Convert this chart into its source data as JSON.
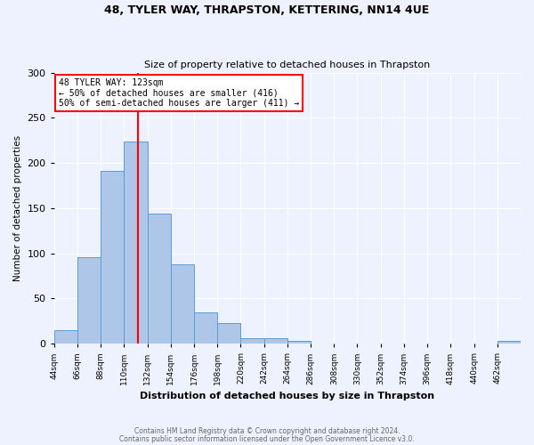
{
  "title1": "48, TYLER WAY, THRAPSTON, KETTERING, NN14 4UE",
  "title2": "Size of property relative to detached houses in Thrapston",
  "xlabel": "Distribution of detached houses by size in Thrapston",
  "ylabel": "Number of detached properties",
  "footer1": "Contains HM Land Registry data © Crown copyright and database right 2024.",
  "footer2": "Contains public sector information licensed under the Open Government Licence v3.0.",
  "bins": [
    44,
    66,
    88,
    110,
    132,
    154,
    176,
    198,
    220,
    242,
    264,
    286,
    308,
    330,
    352,
    374,
    396,
    418,
    440,
    462,
    484
  ],
  "bar_values": [
    15,
    96,
    191,
    224,
    144,
    88,
    35,
    23,
    6,
    6,
    3,
    0,
    0,
    0,
    0,
    0,
    0,
    0,
    0,
    3
  ],
  "bar_color": "#AEC6E8",
  "bar_edge_color": "#5B9BD5",
  "red_line_x": 123,
  "annotation_text": "48 TYLER WAY: 123sqm\n← 50% of detached houses are smaller (416)\n50% of semi-detached houses are larger (411) →",
  "annotation_box_color": "white",
  "annotation_box_edge": "red",
  "ylim": [
    0,
    300
  ],
  "yticks": [
    0,
    50,
    100,
    150,
    200,
    250,
    300
  ],
  "background_color": "#EEF2FF",
  "grid_color": "white"
}
